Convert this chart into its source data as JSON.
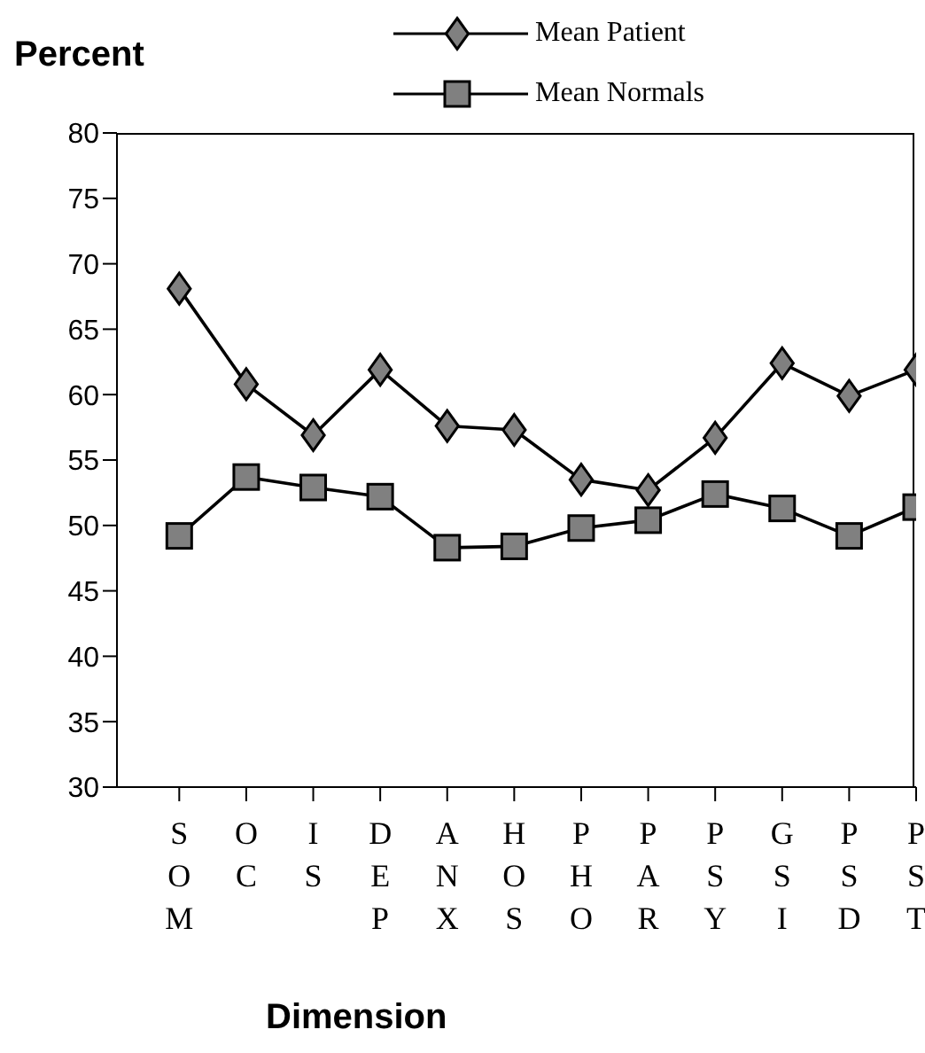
{
  "chart_data": {
    "type": "line",
    "xlabel": "Dimension",
    "ylabel": "Percent",
    "categories": [
      "SOM",
      "OC",
      "IS",
      "DEP",
      "ANX",
      "HOS",
      "PHO",
      "PAR",
      "PSY",
      "GSI",
      "PSD",
      "PST"
    ],
    "series": [
      {
        "name": "Mean Patient",
        "color": "#808080",
        "marker": "diamond",
        "values": [
          68.1,
          60.8,
          56.9,
          61.9,
          57.6,
          57.3,
          53.5,
          52.7,
          56.7,
          62.4,
          59.9,
          61.9
        ]
      },
      {
        "name": "Mean Normals",
        "color": "#808080",
        "marker": "square",
        "values": [
          49.2,
          53.7,
          52.9,
          52.2,
          48.3,
          48.4,
          49.8,
          50.4,
          52.4,
          51.3,
          49.2,
          51.4
        ]
      }
    ],
    "ylim": [
      30,
      80
    ],
    "yticks": [
      30,
      35,
      40,
      45,
      50,
      55,
      60,
      65,
      70,
      75,
      80
    ],
    "grid": false,
    "legend": "top",
    "line_style": "solid"
  }
}
